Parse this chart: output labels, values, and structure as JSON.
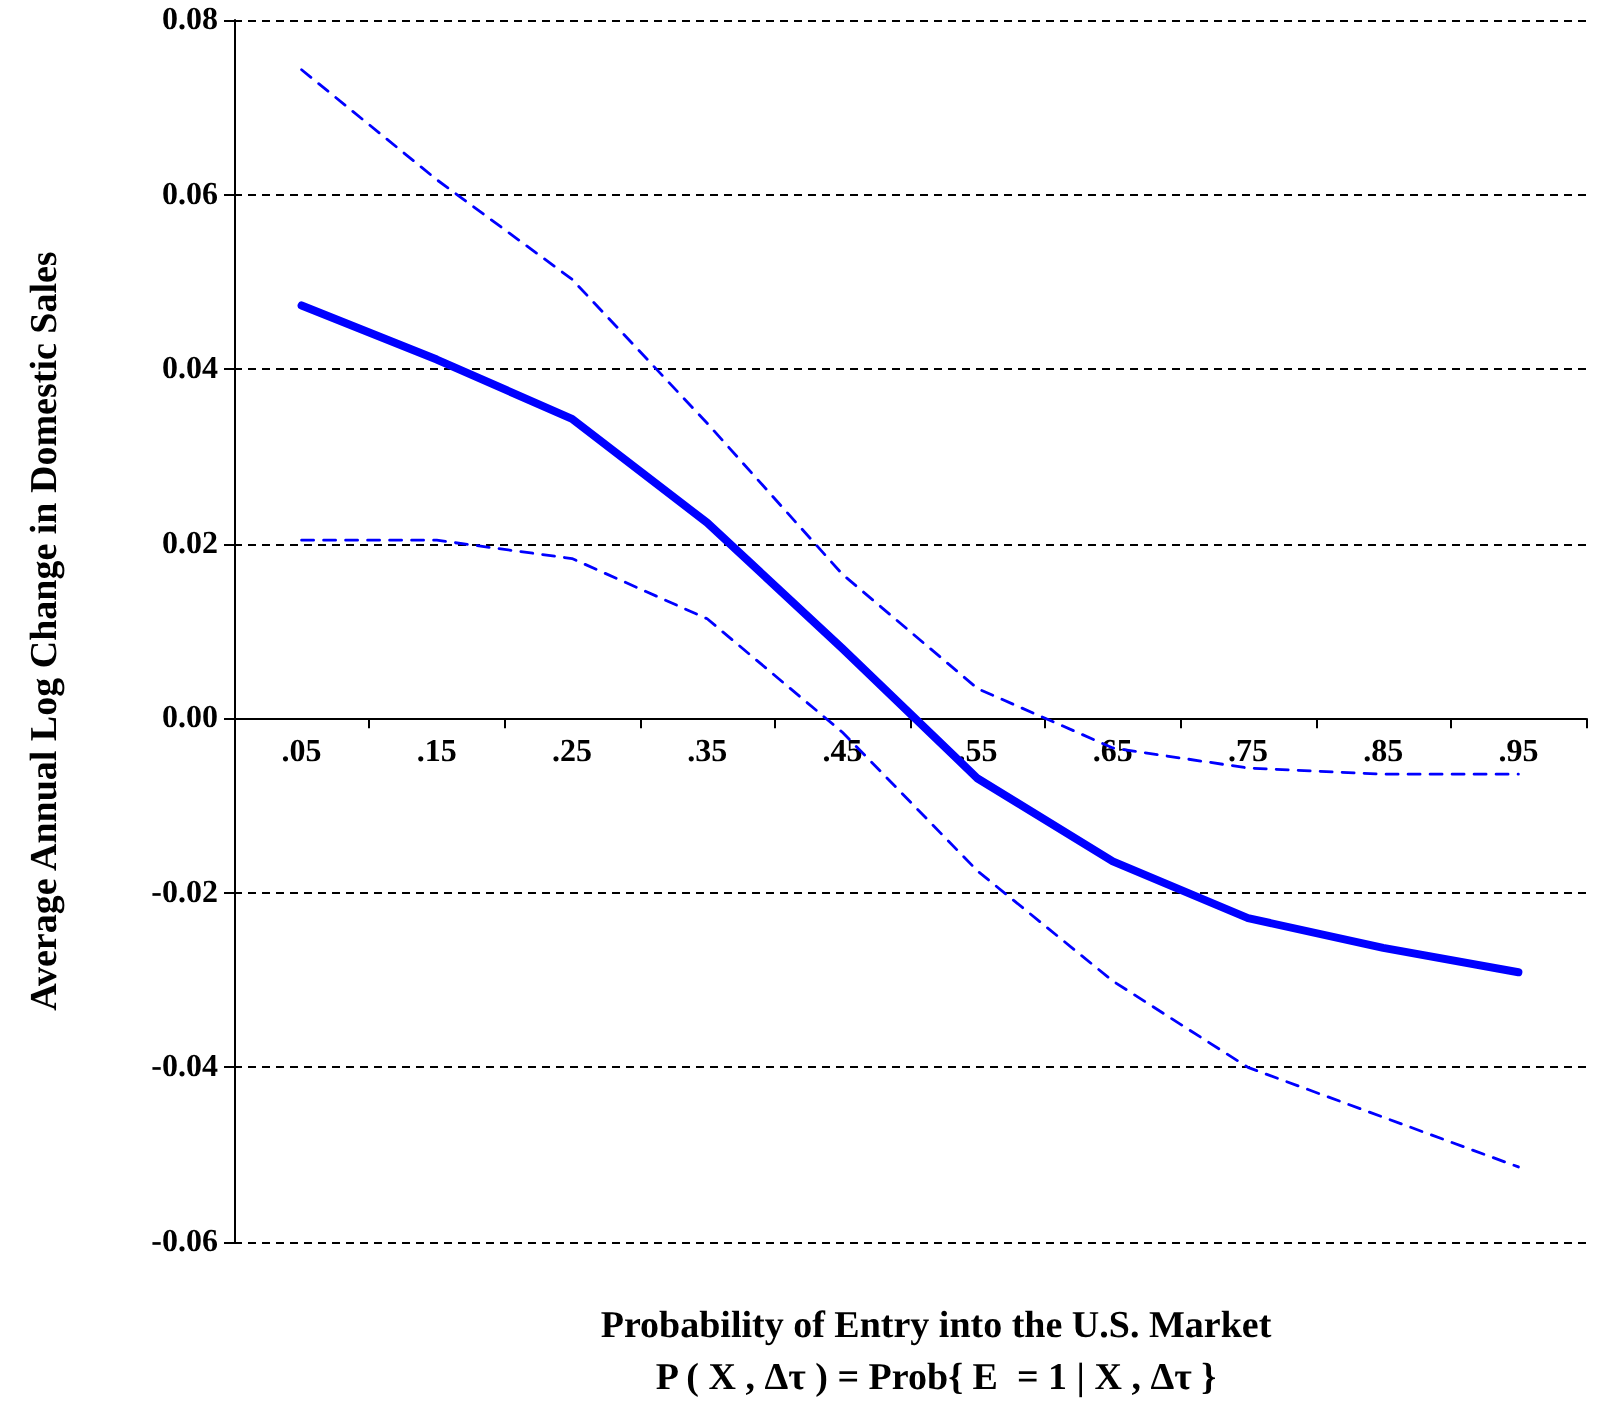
{
  "chart_data": {
    "type": "line",
    "xlabel": "Probability of Entry into the U.S. Market\nP ( X , Δτ ) = Prob{ E  = 1 | X , Δτ }",
    "ylabel": "Average Annual Log Change in Domestic Sales",
    "categories": [
      ".05",
      ".15",
      ".25",
      ".35",
      ".45",
      ".55",
      ".65",
      ".75",
      ".85",
      ".95"
    ],
    "series": [
      {
        "color": "#0000ff",
        "line_style": "dashed",
        "values": [
          0.0743,
          0.0617,
          0.0503,
          0.0338,
          0.0165,
          0.0034,
          -0.0034,
          -0.0057,
          -0.0064,
          -0.0064
        ]
      },
      {
        "color": "#0000ff",
        "line_style": "solid",
        "values": [
          0.0473,
          0.0411,
          0.0343,
          0.0224,
          0.008,
          -0.0069,
          -0.0164,
          -0.0229,
          -0.0263,
          -0.0291
        ]
      },
      {
        "color": "#0000ff",
        "line_style": "dashed",
        "values": [
          0.0204,
          0.0204,
          0.0183,
          0.0114,
          -0.0016,
          -0.0175,
          -0.0301,
          -0.04,
          -0.0457,
          -0.0514
        ]
      }
    ],
    "ylim": [
      -0.06,
      0.08
    ],
    "yticks": [
      {
        "value": -0.06,
        "label": "-0.06"
      },
      {
        "value": -0.04,
        "label": "-0.04"
      },
      {
        "value": -0.02,
        "label": "-0.02"
      },
      {
        "value": 0,
        "label": "0.00"
      },
      {
        "value": 0.02,
        "label": "0.02"
      },
      {
        "value": 0.04,
        "label": "0.04"
      },
      {
        "value": 0.06,
        "label": "0.06"
      },
      {
        "value": 0.08,
        "label": "0.08"
      }
    ],
    "grid": "y",
    "marker": "none"
  }
}
